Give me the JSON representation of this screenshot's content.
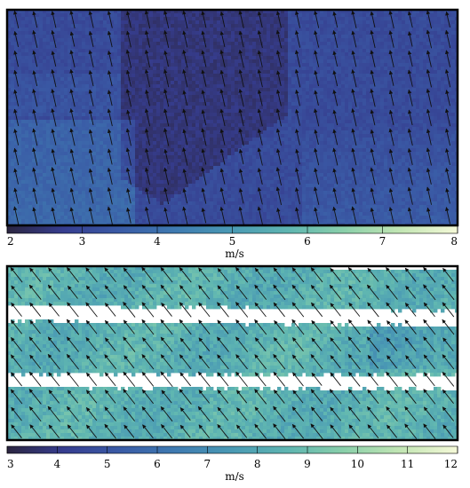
{
  "chart_data": [
    {
      "type": "heatmap",
      "name": "top-panel",
      "colorbar": {
        "range": [
          2,
          8
        ],
        "ticks": [
          "2",
          "3",
          "4",
          "5",
          "6",
          "7",
          "8"
        ],
        "label": "m/s"
      },
      "field": {
        "base_speed": 3.1,
        "wind_direction": "north-northwest",
        "arrow_columns": 24,
        "arrow_rows": 11
      }
    },
    {
      "type": "heatmap",
      "name": "bottom-panel",
      "colorbar": {
        "range": [
          3,
          12
        ],
        "ticks": [
          "3",
          "4",
          "5",
          "6",
          "7",
          "8",
          "9",
          "10",
          "11",
          "12"
        ],
        "label": "m/s"
      },
      "field": {
        "base_speed": 8.4,
        "wind_direction": "northwest",
        "arrow_columns": 24,
        "arrow_rows": 10,
        "blank_bands": 2
      }
    }
  ],
  "colormap": [
    "#2b2540",
    "#363d8f",
    "#3a5ba6",
    "#3f7bb1",
    "#4a9ab4",
    "#5fb6b1",
    "#8bd0aa",
    "#c3e6b4",
    "#f5f9d8"
  ]
}
